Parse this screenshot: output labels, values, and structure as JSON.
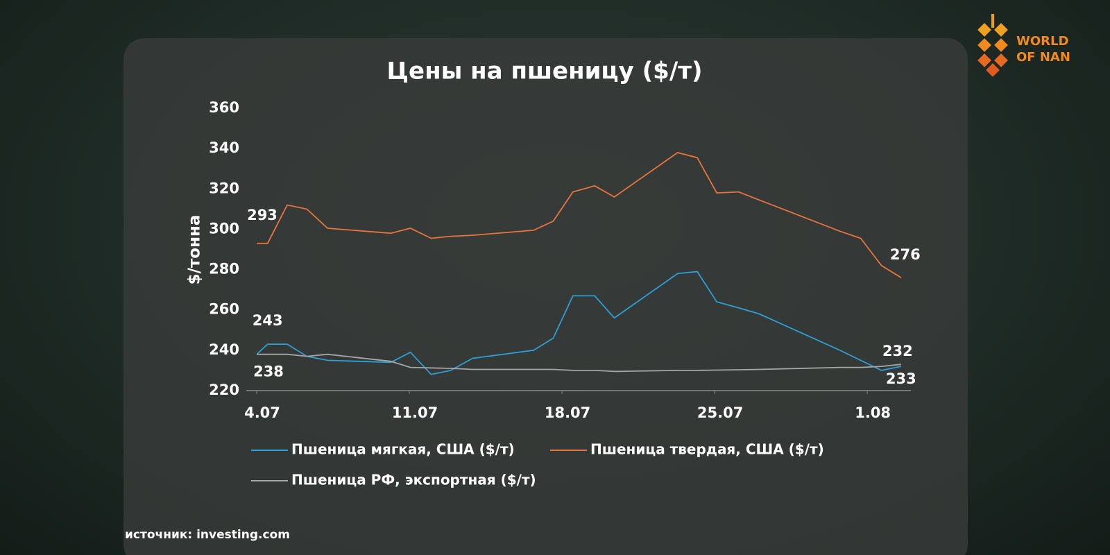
{
  "chart_data": {
    "type": "line",
    "title": "Цены на пшеницу ($/т)",
    "y_label": "$/тонна",
    "xlim": [
      4,
      34
    ],
    "xticks": [
      {
        "value": 4,
        "label": "4.07"
      },
      {
        "value": 11,
        "label": "11.07"
      },
      {
        "value": 18,
        "label": "18.07"
      },
      {
        "value": 25,
        "label": "25.07"
      },
      {
        "value": 32,
        "label": "1.08"
      }
    ],
    "ylim": [
      220,
      360
    ],
    "yticks": [
      220,
      240,
      260,
      280,
      300,
      320,
      340,
      360
    ],
    "series": [
      {
        "name": "Пшеница мягкая, США  ($/т)",
        "color": "#2c9fd6",
        "x": [
          4,
          4.5,
          5.4,
          6.3,
          7.25,
          10.15,
          11.05,
          12,
          12.9,
          13.9,
          16.7,
          17.6,
          18.5,
          19.5,
          20.4,
          23.3,
          24.2,
          25.1,
          26.1,
          27.05,
          30.75,
          31.7,
          32.65,
          33.55
        ],
        "values": [
          238,
          243,
          243,
          237,
          235,
          234,
          239,
          228,
          230,
          236,
          240,
          246,
          267,
          267,
          256,
          278,
          279,
          264,
          261,
          258,
          240,
          235,
          230,
          232
        ]
      },
      {
        "name": "Пшеница твердая, США  ($/т)",
        "color": "#e8743b",
        "x": [
          4,
          4.5,
          5.4,
          6.3,
          7.25,
          10.15,
          11.05,
          12,
          12.9,
          13.9,
          16.7,
          17.6,
          18.5,
          19.5,
          20.4,
          23.3,
          24.2,
          25.1,
          26.1,
          27.05,
          30.75,
          31.7,
          32.65,
          33.55
        ],
        "values": [
          293,
          293,
          312,
          310,
          300.5,
          298,
          300.5,
          295.5,
          296.5,
          297,
          299.5,
          304,
          318.5,
          321.5,
          316,
          338,
          335.5,
          318,
          318.5,
          314.5,
          299,
          295.5,
          282,
          276
        ]
      },
      {
        "name": "Пшеница РФ, экспортная ($/т)",
        "color": "#a6a6a6",
        "x": [
          4,
          5.4,
          6.3,
          7.25,
          10.15,
          11.05,
          12.9,
          13.9,
          17.6,
          18.5,
          19.5,
          20.4,
          23.3,
          24.2,
          27.05,
          30.75,
          31.7,
          32.65,
          33.55
        ],
        "values": [
          238,
          238,
          237,
          238,
          234.5,
          231.5,
          231,
          230.5,
          230.5,
          230,
          230,
          229.5,
          230,
          230,
          230.5,
          231.5,
          231.5,
          232,
          233
        ]
      }
    ],
    "grid": false
  },
  "source": "источник: investing.com",
  "logo": {
    "line1": "WORLD",
    "line2": "OF NAN"
  }
}
